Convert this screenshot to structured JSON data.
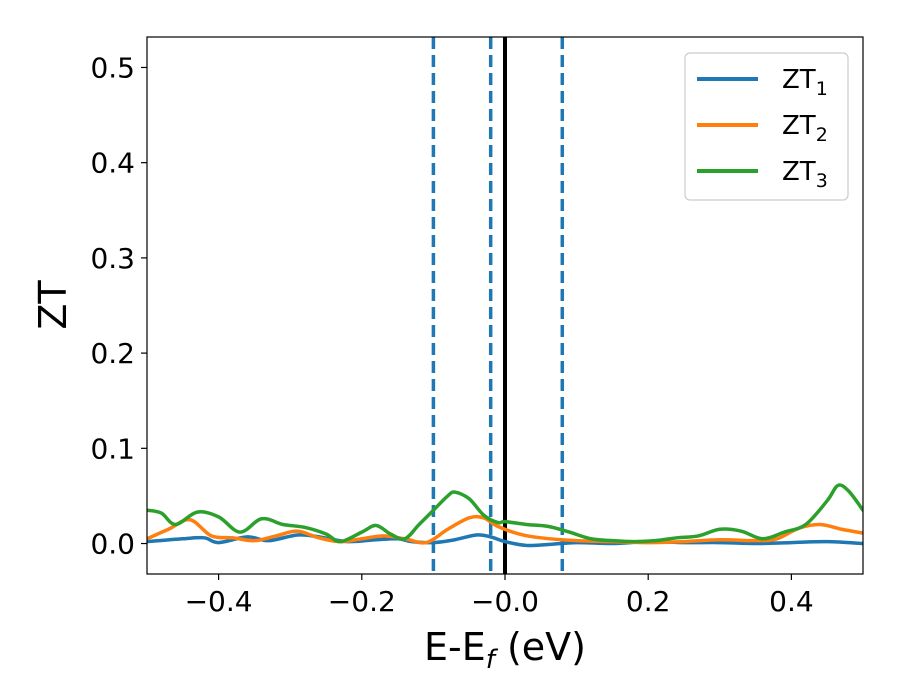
{
  "chart_data": {
    "type": "line",
    "xlabel_main": "E-E",
    "xlabel_sub": "f",
    "xlabel_unit": " (eV)",
    "ylabel": "ZT",
    "xlim": [
      -0.5,
      0.5
    ],
    "ylim": [
      -0.032,
      0.532
    ],
    "x_ticks": [
      -0.4,
      -0.2,
      0.0,
      0.2,
      0.4
    ],
    "x_tick_labels": [
      "−0.4",
      "−0.2",
      "−0.0",
      "0.2",
      "0.4"
    ],
    "y_ticks": [
      0.0,
      0.1,
      0.2,
      0.3,
      0.4,
      0.5
    ],
    "y_tick_labels": [
      "0.0",
      "0.1",
      "0.2",
      "0.3",
      "0.4",
      "0.5"
    ],
    "grid": false,
    "legend_position": "top-right",
    "vertical_lines": [
      {
        "x": -0.1,
        "style": "dashed",
        "color": "#1f77b4"
      },
      {
        "x": -0.02,
        "style": "dashed",
        "color": "#1f77b4"
      },
      {
        "x": 0.0,
        "style": "solid",
        "color": "#000000"
      },
      {
        "x": 0.08,
        "style": "dashed",
        "color": "#1f77b4"
      }
    ],
    "series": [
      {
        "name_main": "ZT",
        "name_sub": "1",
        "color": "#1f77b4",
        "points": [
          [
            -0.5,
            0.002
          ],
          [
            -0.45,
            0.005
          ],
          [
            -0.42,
            0.006
          ],
          [
            -0.4,
            0.001
          ],
          [
            -0.36,
            0.007
          ],
          [
            -0.33,
            0.003
          ],
          [
            -0.29,
            0.009
          ],
          [
            -0.26,
            0.007
          ],
          [
            -0.22,
            0.002
          ],
          [
            -0.18,
            0.004
          ],
          [
            -0.15,
            0.005
          ],
          [
            -0.13,
            0.002
          ],
          [
            -0.1,
            0.001
          ],
          [
            -0.07,
            0.004
          ],
          [
            -0.04,
            0.009
          ],
          [
            -0.02,
            0.007
          ],
          [
            0.0,
            0.002
          ],
          [
            0.03,
            -0.002
          ],
          [
            0.06,
            -0.001
          ],
          [
            0.1,
            0.001
          ],
          [
            0.15,
            0.0
          ],
          [
            0.2,
            0.002
          ],
          [
            0.25,
            0.001
          ],
          [
            0.3,
            0.001
          ],
          [
            0.35,
            0.0
          ],
          [
            0.4,
            0.001
          ],
          [
            0.45,
            0.002
          ],
          [
            0.5,
            0.0
          ]
        ]
      },
      {
        "name_main": "ZT",
        "name_sub": "2",
        "color": "#ff7f0e",
        "points": [
          [
            -0.5,
            0.005
          ],
          [
            -0.47,
            0.015
          ],
          [
            -0.44,
            0.025
          ],
          [
            -0.41,
            0.008
          ],
          [
            -0.38,
            0.006
          ],
          [
            -0.35,
            0.003
          ],
          [
            -0.32,
            0.008
          ],
          [
            -0.29,
            0.013
          ],
          [
            -0.26,
            0.006
          ],
          [
            -0.23,
            0.002
          ],
          [
            -0.2,
            0.005
          ],
          [
            -0.17,
            0.008
          ],
          [
            -0.14,
            0.005
          ],
          [
            -0.11,
            0.001
          ],
          [
            -0.08,
            0.015
          ],
          [
            -0.05,
            0.027
          ],
          [
            -0.03,
            0.027
          ],
          [
            -0.01,
            0.018
          ],
          [
            0.02,
            0.01
          ],
          [
            0.05,
            0.006
          ],
          [
            0.1,
            0.003
          ],
          [
            0.15,
            0.002
          ],
          [
            0.2,
            0.001
          ],
          [
            0.25,
            0.002
          ],
          [
            0.3,
            0.004
          ],
          [
            0.35,
            0.003
          ],
          [
            0.38,
            0.005
          ],
          [
            0.41,
            0.016
          ],
          [
            0.44,
            0.02
          ],
          [
            0.47,
            0.015
          ],
          [
            0.5,
            0.011
          ]
        ]
      },
      {
        "name_main": "ZT",
        "name_sub": "3",
        "color": "#2ca02c",
        "points": [
          [
            -0.5,
            0.035
          ],
          [
            -0.48,
            0.032
          ],
          [
            -0.46,
            0.02
          ],
          [
            -0.43,
            0.033
          ],
          [
            -0.4,
            0.028
          ],
          [
            -0.37,
            0.012
          ],
          [
            -0.34,
            0.026
          ],
          [
            -0.31,
            0.02
          ],
          [
            -0.28,
            0.017
          ],
          [
            -0.25,
            0.01
          ],
          [
            -0.23,
            0.002
          ],
          [
            -0.2,
            0.012
          ],
          [
            -0.18,
            0.019
          ],
          [
            -0.16,
            0.01
          ],
          [
            -0.14,
            0.005
          ],
          [
            -0.12,
            0.02
          ],
          [
            -0.1,
            0.035
          ],
          [
            -0.08,
            0.05
          ],
          [
            -0.07,
            0.054
          ],
          [
            -0.05,
            0.047
          ],
          [
            -0.03,
            0.03
          ],
          [
            -0.01,
            0.022
          ],
          [
            0.0,
            0.023
          ],
          [
            0.03,
            0.02
          ],
          [
            0.06,
            0.018
          ],
          [
            0.09,
            0.012
          ],
          [
            0.12,
            0.005
          ],
          [
            0.15,
            0.003
          ],
          [
            0.18,
            0.002
          ],
          [
            0.21,
            0.003
          ],
          [
            0.24,
            0.006
          ],
          [
            0.27,
            0.008
          ],
          [
            0.3,
            0.015
          ],
          [
            0.33,
            0.013
          ],
          [
            0.36,
            0.005
          ],
          [
            0.39,
            0.012
          ],
          [
            0.42,
            0.02
          ],
          [
            0.45,
            0.045
          ],
          [
            0.465,
            0.061
          ],
          [
            0.48,
            0.055
          ],
          [
            0.5,
            0.035
          ]
        ]
      }
    ]
  }
}
